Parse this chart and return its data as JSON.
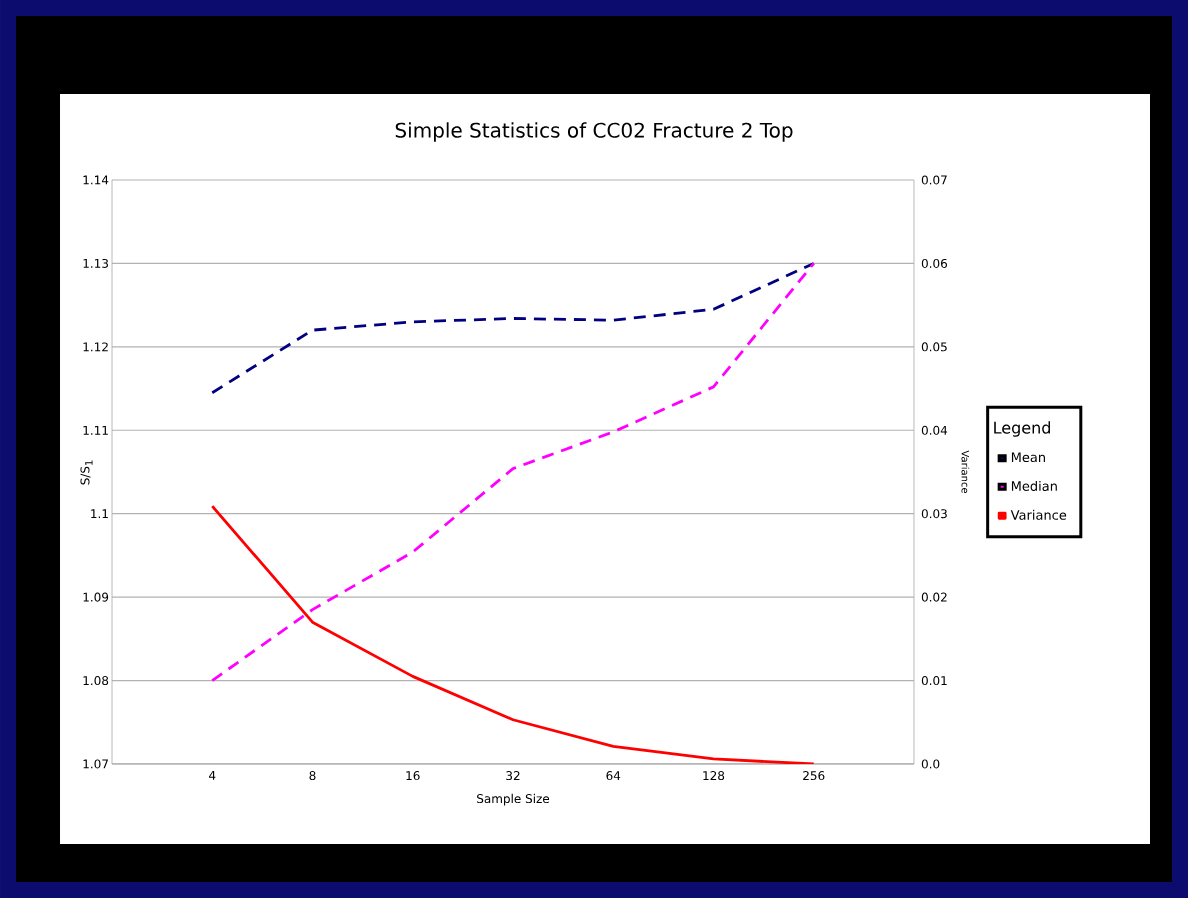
{
  "chart_data": {
    "type": "line",
    "title": "Simple Statistics of CC02 Fracture 2 Top",
    "xlabel": "Sample Size",
    "ylabel": "S/S$_{1}$",
    "y2label": "Variance",
    "legend_title": "Legend",
    "categories": [
      "4",
      "8",
      "16",
      "32",
      "64",
      "128",
      "256"
    ],
    "series": [
      {
        "name": "Mean",
        "color": "#000080",
        "line_style": "dashed",
        "values": [
          1.1145,
          1.122,
          1.123,
          1.1234,
          1.1232,
          1.1245,
          1.13
        ]
      },
      {
        "name": "Median",
        "color": "#ff00ff",
        "line_style": "dashed",
        "values": [
          1.08,
          1.0885,
          1.0954,
          1.1054,
          1.1098,
          1.1152,
          1.13
        ]
      },
      {
        "name": "Variance",
        "color": "#ff0000",
        "line_style": "solid",
        "axis": "y2",
        "values": [
          0.0309,
          0.017,
          0.0105,
          0.0053,
          0.0021,
          0.0006,
          0.0
        ]
      }
    ],
    "ylim": [
      1.07,
      1.14
    ],
    "yticks": [
      1.07,
      1.08,
      1.09,
      1.1,
      1.11,
      1.12,
      1.13,
      1.14
    ],
    "y2lim": [
      0,
      0.07
    ],
    "y2ticks": [
      {
        "value": 0,
        "label": "0.0"
      },
      0.01,
      0.02,
      0.03,
      0.04,
      0.05,
      0.06,
      0.07
    ],
    "grid": "y",
    "legend": "right"
  }
}
